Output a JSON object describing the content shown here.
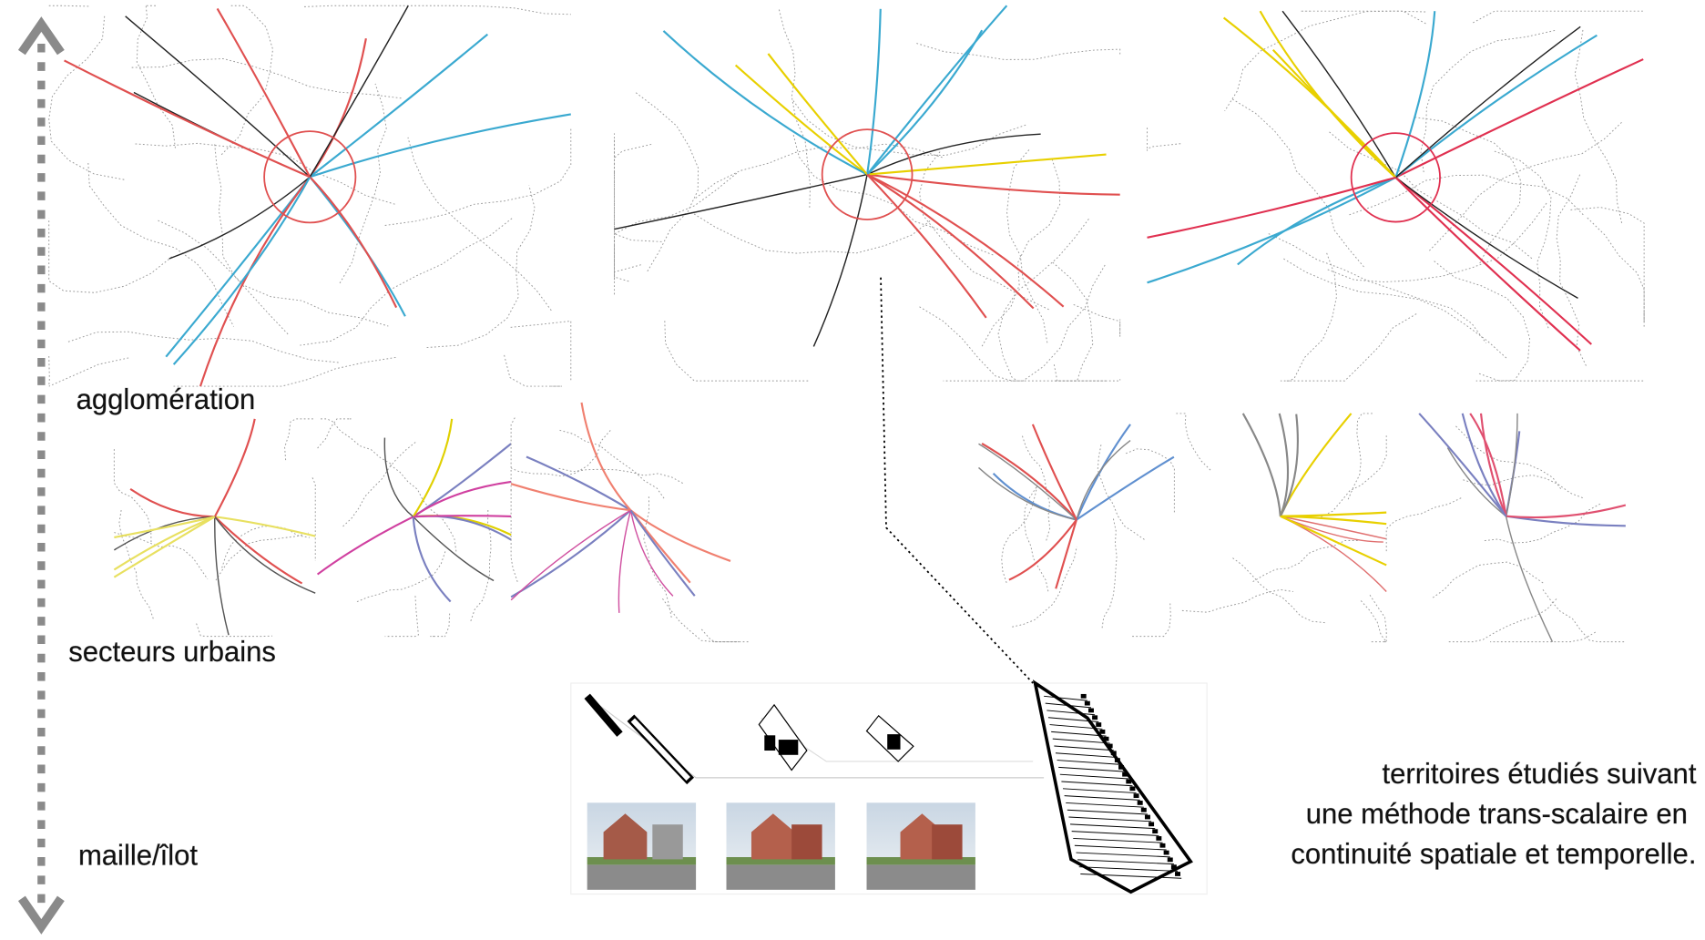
{
  "labels": {
    "agglomeration": "agglomération",
    "secteurs": "secteurs urbains",
    "maille": "maille/îlot"
  },
  "caption": [
    "territoires étudiés suivant",
    "une méthode trans-scalaire en",
    "continuité spatiale et temporelle."
  ]
}
